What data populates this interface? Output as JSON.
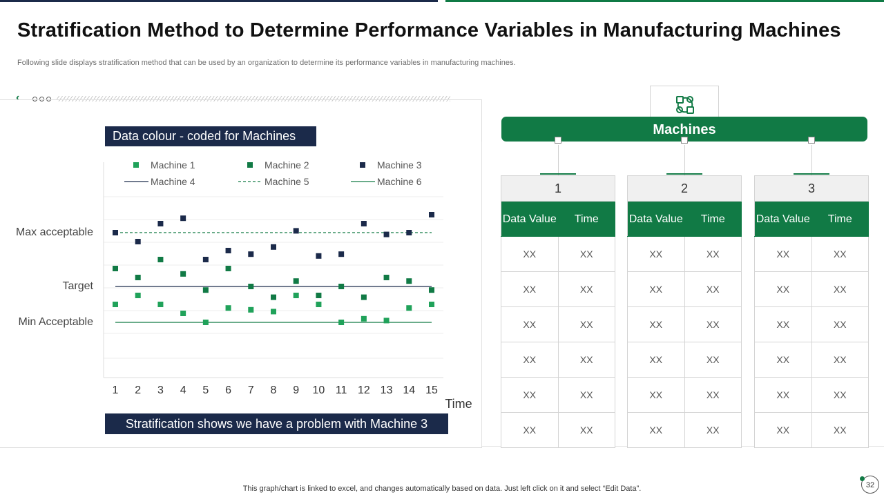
{
  "title": "Stratification Method to Determine Performance Variables in Manufacturing Machines",
  "subtitle": "Following slide displays stratification method that can be used by an organization to determine its performance variables in manufacturing machines.",
  "legend_box_label": "Data colour - coded for Machines",
  "conclusion": "Stratification shows we have a problem with Machine 3",
  "footer": "This graph/chart is linked to excel,  and changes automatically based on data. Just left click on it and select “Edit Data”.",
  "page_number": "32",
  "colors": {
    "navy": "#1b2a4a",
    "green": "#117a45",
    "light_green": "#20a25a"
  },
  "chart_data": {
    "type": "scatter",
    "x": [
      1,
      2,
      3,
      4,
      5,
      6,
      7,
      8,
      9,
      10,
      11,
      12,
      13,
      14,
      15
    ],
    "xlabel": "Time",
    "ylim": [
      0,
      100
    ],
    "y_labels": [
      {
        "text": "Max acceptable",
        "value": 70
      },
      {
        "text": "Target",
        "value": 40
      },
      {
        "text": "Min Acceptable",
        "value": 20
      }
    ],
    "series": [
      {
        "name": "Machine 1",
        "kind": "points",
        "color": "#20a25a",
        "values": [
          30,
          35,
          30,
          25,
          20,
          28,
          27,
          26,
          35,
          30,
          20,
          22,
          21,
          28,
          30
        ]
      },
      {
        "name": "Machine 2",
        "kind": "points",
        "color": "#117a45",
        "values": [
          50,
          45,
          55,
          47,
          38,
          50,
          40,
          34,
          43,
          35,
          40,
          34,
          45,
          43,
          38
        ]
      },
      {
        "name": "Machine 3",
        "kind": "points",
        "color": "#1b2a4a",
        "values": [
          70,
          65,
          75,
          78,
          55,
          60,
          58,
          62,
          71,
          57,
          58,
          75,
          69,
          70,
          80
        ]
      },
      {
        "name": "Machine 4",
        "kind": "line",
        "style": "solid",
        "color": "#1b2a4a",
        "values": [
          40,
          40,
          40,
          40,
          40,
          40,
          40,
          40,
          40,
          40,
          40,
          40,
          40,
          40,
          40
        ]
      },
      {
        "name": "Machine 5",
        "kind": "line",
        "style": "dashed",
        "color": "#117a45",
        "values": [
          70,
          70,
          70,
          70,
          70,
          70,
          70,
          70,
          70,
          70,
          70,
          70,
          70,
          70,
          70
        ]
      },
      {
        "name": "Machine 6",
        "kind": "line",
        "style": "solid",
        "color": "#117a45",
        "values": [
          20,
          20,
          20,
          20,
          20,
          20,
          20,
          20,
          20,
          20,
          20,
          20,
          20,
          20,
          20
        ]
      }
    ]
  },
  "machines": {
    "header": "Machines",
    "columns": [
      {
        "number": "1",
        "col_a": "Data Value",
        "col_b": "Time",
        "rows": [
          [
            "XX",
            "XX"
          ],
          [
            "XX",
            "XX"
          ],
          [
            "XX",
            "XX"
          ],
          [
            "XX",
            "XX"
          ],
          [
            "XX",
            "XX"
          ],
          [
            "XX",
            "XX"
          ]
        ]
      },
      {
        "number": "2",
        "col_a": "Data Value",
        "col_b": "Time",
        "rows": [
          [
            "XX",
            "XX"
          ],
          [
            "XX",
            "XX"
          ],
          [
            "XX",
            "XX"
          ],
          [
            "XX",
            "XX"
          ],
          [
            "XX",
            "XX"
          ],
          [
            "XX",
            "XX"
          ]
        ]
      },
      {
        "number": "3",
        "col_a": "Data Value",
        "col_b": "Time",
        "rows": [
          [
            "XX",
            "XX"
          ],
          [
            "XX",
            "XX"
          ],
          [
            "XX",
            "XX"
          ],
          [
            "XX",
            "XX"
          ],
          [
            "XX",
            "XX"
          ],
          [
            "XX",
            "XX"
          ]
        ]
      }
    ]
  }
}
